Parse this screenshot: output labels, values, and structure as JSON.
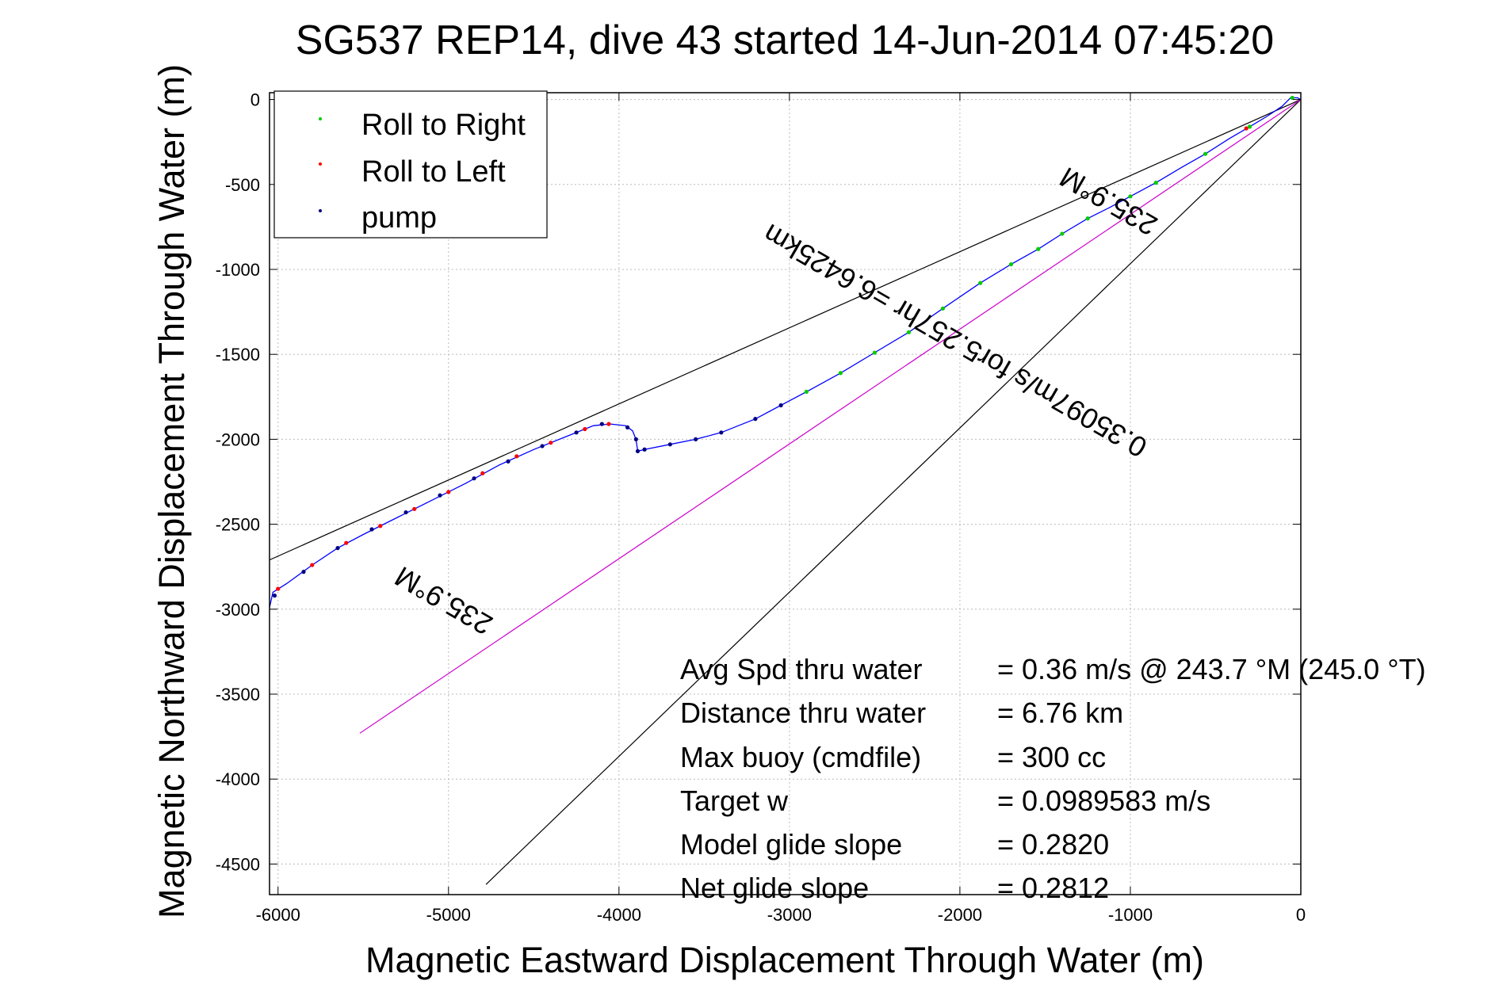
{
  "chart_data": {
    "type": "scatter",
    "title": "SG537 REP14, dive 43 started 14-Jun-2014 07:45:20",
    "xlabel": "Magnetic Eastward Displacement Through Water (m)",
    "ylabel": "Magnetic Northward Displacement Through Water (m)",
    "xlim": [
      -6050,
      0
    ],
    "ylim": [
      -4680,
      40
    ],
    "xticks": [
      -6000,
      -5000,
      -4000,
      -3000,
      -2000,
      -1000,
      0
    ],
    "yticks": [
      0,
      -500,
      -1000,
      -1500,
      -2000,
      -2500,
      -3000,
      -3500,
      -4000,
      -4500
    ],
    "grid": true,
    "legend_position": "top-left",
    "legend": [
      {
        "label": "Roll to Right",
        "color": "#00cc00"
      },
      {
        "label": "Roll to Left",
        "color": "#ff0000"
      },
      {
        "label": "pump",
        "color": "#000080"
      }
    ],
    "track": {
      "color": "#0000ff",
      "points": [
        [
          0,
          0
        ],
        [
          -20,
          10
        ],
        [
          -60,
          10
        ],
        [
          -110,
          -40
        ],
        [
          -200,
          -100
        ],
        [
          -300,
          -160
        ],
        [
          -420,
          -230
        ],
        [
          -560,
          -320
        ],
        [
          -700,
          -400
        ],
        [
          -850,
          -490
        ],
        [
          -1000,
          -570
        ],
        [
          -1130,
          -640
        ],
        [
          -1250,
          -700
        ],
        [
          -1400,
          -790
        ],
        [
          -1540,
          -880
        ],
        [
          -1700,
          -970
        ],
        [
          -1880,
          -1080
        ],
        [
          -2100,
          -1230
        ],
        [
          -2300,
          -1370
        ],
        [
          -2500,
          -1490
        ],
        [
          -2700,
          -1610
        ],
        [
          -2900,
          -1720
        ],
        [
          -3050,
          -1800
        ],
        [
          -3200,
          -1880
        ],
        [
          -3400,
          -1960
        ],
        [
          -3550,
          -2000
        ],
        [
          -3700,
          -2030
        ],
        [
          -3850,
          -2060
        ],
        [
          -3890,
          -2070
        ],
        [
          -3900,
          -2000
        ],
        [
          -3920,
          -1950
        ],
        [
          -3960,
          -1920
        ],
        [
          -4050,
          -1910
        ],
        [
          -4150,
          -1920
        ],
        [
          -4300,
          -1980
        ],
        [
          -4500,
          -2060
        ],
        [
          -4700,
          -2150
        ],
        [
          -4900,
          -2260
        ],
        [
          -5100,
          -2360
        ],
        [
          -5300,
          -2460
        ],
        [
          -5500,
          -2560
        ],
        [
          -5650,
          -2640
        ],
        [
          -5800,
          -2740
        ],
        [
          -5950,
          -2850
        ],
        [
          -6030,
          -2900
        ],
        [
          -6050,
          -2990
        ]
      ],
      "roll_right": [
        [
          -300,
          -160
        ],
        [
          -560,
          -320
        ],
        [
          -850,
          -490
        ],
        [
          -1000,
          -570
        ],
        [
          -1250,
          -700
        ],
        [
          -1400,
          -790
        ],
        [
          -1540,
          -880
        ],
        [
          -1700,
          -970
        ],
        [
          -1880,
          -1080
        ],
        [
          -2100,
          -1230
        ],
        [
          -2300,
          -1370
        ],
        [
          -2500,
          -1490
        ],
        [
          -2700,
          -1610
        ],
        [
          -2900,
          -1720
        ],
        [
          -50,
          10
        ]
      ],
      "roll_left": [
        [
          -320,
          -170
        ],
        [
          -4060,
          -1910
        ],
        [
          -4200,
          -1940
        ],
        [
          -4400,
          -2020
        ],
        [
          -4600,
          -2100
        ],
        [
          -4800,
          -2200
        ],
        [
          -5000,
          -2310
        ],
        [
          -5200,
          -2410
        ],
        [
          -5400,
          -2510
        ],
        [
          -5600,
          -2610
        ],
        [
          -5800,
          -2740
        ],
        [
          -6000,
          -2880
        ]
      ],
      "pump": [
        [
          -3050,
          -1800
        ],
        [
          -3200,
          -1880
        ],
        [
          -3400,
          -1960
        ],
        [
          -3550,
          -2000
        ],
        [
          -3700,
          -2030
        ],
        [
          -3850,
          -2060
        ],
        [
          -3890,
          -2070
        ],
        [
          -3900,
          -2000
        ],
        [
          -3950,
          -1930
        ],
        [
          -4100,
          -1910
        ],
        [
          -4250,
          -1960
        ],
        [
          -4450,
          -2040
        ],
        [
          -4650,
          -2130
        ],
        [
          -4850,
          -2230
        ],
        [
          -5050,
          -2330
        ],
        [
          -5250,
          -2430
        ],
        [
          -5450,
          -2530
        ],
        [
          -5650,
          -2640
        ],
        [
          -5850,
          -2780
        ],
        [
          -6020,
          -2920
        ]
      ]
    },
    "lines": [
      {
        "name": "bound-upper",
        "color": "#000000",
        "from": [
          0,
          0
        ],
        "to": [
          -6050,
          -2710
        ]
      },
      {
        "name": "bound-lower",
        "color": "#000000",
        "from": [
          0,
          0
        ],
        "to": [
          -4780,
          -4620
        ]
      },
      {
        "name": "net",
        "color": "#cc00cc",
        "from": [
          0,
          0
        ],
        "to": [
          -5520,
          -3730
        ]
      }
    ],
    "annotations": [
      {
        "text": "235.9°M",
        "rotation_deg": 30,
        "at": [
          -5000,
          -2900
        ]
      },
      {
        "text": "235.9°M",
        "rotation_deg": 30,
        "at": [
          -1100,
          -550
        ]
      },
      {
        "text": "0.35097m/s for5.257hr =6.6425km",
        "rotation_deg": 30,
        "at": [
          -2000,
          -1370
        ]
      }
    ],
    "stats": [
      {
        "label": "Avg Spd thru water",
        "value": "=  0.36 m/s @ 243.7 °M (245.0 °T)"
      },
      {
        "label": "Distance thru water",
        "value": "=  6.76 km"
      },
      {
        "label": "Max buoy (cmdfile)",
        "value": "= 300 cc"
      },
      {
        "label": "Target w",
        "value": "= 0.0989583 m/s"
      },
      {
        "label": "Model glide slope",
        "value": "= 0.2820"
      },
      {
        "label": "Net glide slope",
        "value": "= 0.2812"
      }
    ]
  }
}
